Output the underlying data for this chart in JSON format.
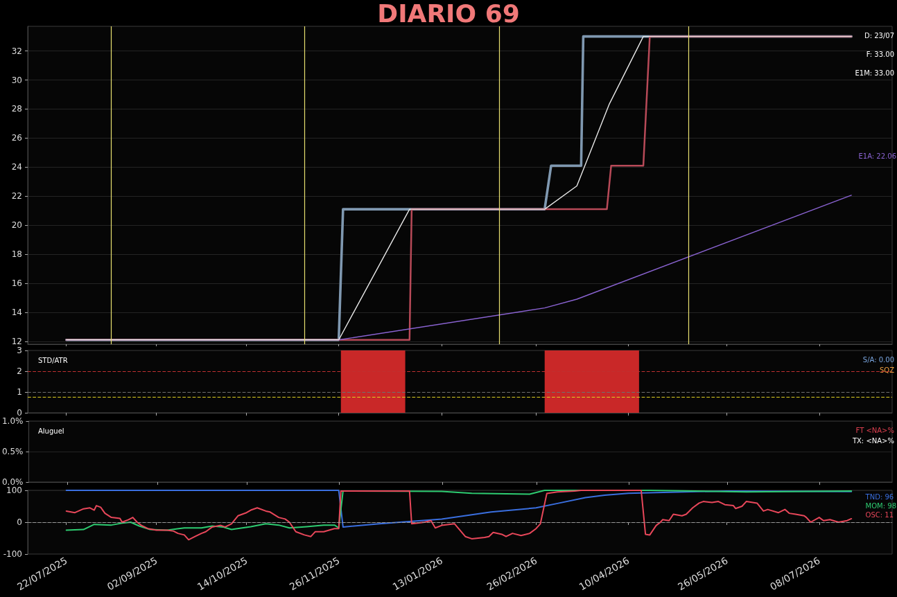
{
  "chart_data": [
    {
      "type": "line",
      "title": "DIARIO 69",
      "xlim": [
        "2025-07-04",
        "2026-08-11"
      ],
      "ylim": [
        11.8,
        33.7
      ],
      "yticks": [
        12,
        14,
        16,
        18,
        20,
        22,
        24,
        26,
        28,
        30,
        32
      ],
      "xticks": [
        {
          "value": "2025-07-22",
          "label": null
        },
        {
          "value": "2025-09-02",
          "label": null
        },
        {
          "value": "2025-10-14",
          "label": null
        },
        {
          "value": "2025-11-26",
          "label": null
        },
        {
          "value": "2026-01-13",
          "label": null
        },
        {
          "value": "2026-02-26",
          "label": null
        },
        {
          "value": "2026-04-10",
          "label": null
        },
        {
          "value": "2026-05-26",
          "label": null
        },
        {
          "value": "2026-07-08",
          "label": null
        }
      ],
      "tick_labels": "y",
      "grid": "y",
      "marker": "none",
      "legend": "right",
      "annotations": [
        "D: 23/07",
        "F: 33.00",
        "E1M: 33.00"
      ],
      "ref_lines": [
        {
          "axis": "x",
          "value": "2025-08-12",
          "color": "#e8e070"
        },
        {
          "axis": "x",
          "value": "2025-11-10",
          "color": "#e8e070"
        },
        {
          "axis": "x",
          "value": "2026-02-09",
          "color": "#e8e070"
        },
        {
          "axis": "x",
          "value": "2026-05-08",
          "color": "#e8e070"
        }
      ],
      "series": [
        {
          "color": "#7f98b0",
          "type": "line",
          "x": [
            "2025-07-22",
            "2025-11-26",
            "2025-11-28",
            "2026-03-02",
            "2026-03-05",
            "2026-03-19",
            "2026-03-20",
            "2026-07-23"
          ],
          "values": [
            12.1,
            12.1,
            21.1,
            21.1,
            24.1,
            24.1,
            33,
            33
          ]
        },
        {
          "color": "#b84a58",
          "type": "line",
          "x": [
            "2025-07-22",
            "2025-12-29",
            "2025-12-30",
            "2026-03-31",
            "2026-04-02",
            "2026-04-17",
            "2026-04-20",
            "2026-07-23"
          ],
          "values": [
            12.1,
            12.1,
            21.1,
            21.1,
            24.1,
            24.1,
            33,
            33
          ]
        },
        {
          "color": "#8a63d2",
          "name": "E1A: 22.06",
          "x": [
            "2025-07-22",
            "2025-11-26",
            "2026-03-02",
            "2026-03-17",
            "2026-07-23"
          ],
          "values": [
            12.1,
            12.1,
            14.3,
            14.9,
            22.06
          ]
        },
        {
          "color": "#e8e8e8",
          "x": [
            "2025-07-22",
            "2025-11-26",
            "2025-12-29",
            "2026-03-02",
            "2026-03-17",
            "2026-04-01",
            "2026-04-17",
            "2026-07-23"
          ],
          "values": [
            12.1,
            12.1,
            21.1,
            21.1,
            22.7,
            28.3,
            33,
            33
          ]
        }
      ]
    },
    {
      "type": "line",
      "title": "STD/ATR",
      "xlim": [
        "2025-07-04",
        "2026-08-11"
      ],
      "ylim": [
        0,
        3
      ],
      "yticks": [
        0,
        1,
        2,
        3
      ],
      "xticks": [
        {
          "value": "2025-07-22",
          "label": null
        },
        {
          "value": "2025-09-02",
          "label": null
        },
        {
          "value": "2025-10-14",
          "label": null
        },
        {
          "value": "2025-11-26",
          "label": null
        },
        {
          "value": "2026-01-13",
          "label": null
        },
        {
          "value": "2026-02-26",
          "label": null
        },
        {
          "value": "2026-04-10",
          "label": null
        },
        {
          "value": "2026-05-26",
          "label": null
        },
        {
          "value": "2026-07-08",
          "label": null
        }
      ],
      "tick_labels": "y",
      "annotations": [
        "S/A: 0.00",
        "SQZ"
      ],
      "bands": [
        {
          "axis": "x",
          "from": "2025-11-27",
          "to": "2025-12-27",
          "color": "#d42a2a"
        },
        {
          "axis": "x",
          "from": "2026-03-02",
          "to": "2026-04-15",
          "color": "#d42a2a"
        }
      ],
      "ref_lines": [
        {
          "axis": "y",
          "value": 2,
          "color": "#c03030",
          "line_style": "dashed"
        },
        {
          "axis": "y",
          "value": 1,
          "color": "#707070",
          "line_style": "dashed"
        },
        {
          "axis": "y",
          "value": 0.75,
          "color": "#e0d020",
          "line_style": "dashed"
        }
      ]
    },
    {
      "type": "line",
      "title": "Aluguel",
      "xlim": [
        "2025-07-04",
        "2026-08-11"
      ],
      "ylim": [
        0,
        1
      ],
      "yticks": [
        {
          "value": 0,
          "label": "0.0%"
        },
        {
          "value": 0.5,
          "label": "0.5%"
        },
        {
          "value": 1,
          "label": "1.0%"
        }
      ],
      "xticks": [
        {
          "value": "2025-07-22",
          "label": null
        },
        {
          "value": "2025-09-02",
          "label": null
        },
        {
          "value": "2025-10-14",
          "label": null
        },
        {
          "value": "2025-11-26",
          "label": null
        },
        {
          "value": "2026-01-13",
          "label": null
        },
        {
          "value": "2026-02-26",
          "label": null
        },
        {
          "value": "2026-04-10",
          "label": null
        },
        {
          "value": "2026-05-26",
          "label": null
        },
        {
          "value": "2026-07-08",
          "label": null
        }
      ],
      "tick_labels": "y",
      "grid": "y",
      "annotations": [
        "FT <NA>%",
        "TX: <NA>%"
      ]
    },
    {
      "type": "line",
      "xlim": [
        "2025-07-04",
        "2026-08-11"
      ],
      "ylim": [
        -100,
        100
      ],
      "yticks": [
        -100,
        0,
        100
      ],
      "xticks": [
        {
          "value": "2025-07-22",
          "label": "22/07/2025"
        },
        {
          "value": "2025-09-02",
          "label": "02/09/2025"
        },
        {
          "value": "2025-10-14",
          "label": "14/10/2025"
        },
        {
          "value": "2025-11-26",
          "label": "26/11/2025"
        },
        {
          "value": "2026-01-13",
          "label": "13/01/2026"
        },
        {
          "value": "2026-02-26",
          "label": "26/02/2026"
        },
        {
          "value": "2026-04-10",
          "label": "10/04/2026"
        },
        {
          "value": "2026-05-26",
          "label": "26/05/2026"
        },
        {
          "value": "2026-07-08",
          "label": "08/07/2026"
        }
      ],
      "marker": "none",
      "legend": "top right",
      "ref_lines": [
        {
          "axis": "y",
          "value": 0,
          "color": "#999999",
          "line_style": "dashed"
        }
      ],
      "series": [
        {
          "name": "TND: 96",
          "color": "#3a6fe0",
          "x": [
            "2025-07-22",
            "2025-11-26",
            "2025-11-28",
            "2025-12-15",
            "2026-01-13",
            "2026-02-05",
            "2026-02-26",
            "2026-03-08",
            "2026-03-21",
            "2026-03-30",
            "2026-04-10",
            "2026-05-26",
            "2026-07-23"
          ],
          "values": [
            100,
            100,
            -15,
            -5,
            10,
            32,
            45,
            59,
            77,
            85,
            91,
            98,
            96
          ]
        },
        {
          "name": "MOM: 98",
          "color": "#2ecc71",
          "x": [
            "2025-07-22",
            "2025-07-30",
            "2025-08-04",
            "2025-08-12",
            "2025-08-17",
            "2025-08-21",
            "2025-08-25",
            "2025-08-30",
            "2025-09-07",
            "2025-09-15",
            "2025-09-23",
            "2025-09-28",
            "2025-10-03",
            "2025-10-07",
            "2025-10-16",
            "2025-10-23",
            "2025-10-29",
            "2025-11-03",
            "2025-11-11",
            "2025-11-19",
            "2025-11-24",
            "2025-11-26",
            "2025-11-28",
            "2026-01-13",
            "2026-01-27",
            "2026-02-23",
            "2026-03-02",
            "2026-04-20",
            "2026-06-04",
            "2026-07-23"
          ],
          "values": [
            -25,
            -23,
            -7,
            -9,
            -3,
            0,
            -12,
            -23,
            -25,
            -18,
            -18,
            -12,
            -15,
            -23,
            -14,
            -5,
            -9,
            -18,
            -14,
            -9,
            -9,
            -18,
            98,
            97,
            91,
            88,
            100,
            100,
            95,
            98
          ]
        },
        {
          "name": "OSC: 11",
          "color": "#e8475a",
          "x": [
            "2025-07-22",
            "2025-07-26",
            "2025-07-30",
            "2025-08-02",
            "2025-08-04",
            "2025-08-05",
            "2025-08-07",
            "2025-08-09",
            "2025-08-12",
            "2025-08-16",
            "2025-08-17",
            "2025-08-20",
            "2025-08-22",
            "2025-08-24",
            "2025-08-26",
            "2025-08-29",
            "2025-09-02",
            "2025-09-07",
            "2025-09-10",
            "2025-09-12",
            "2025-09-15",
            "2025-09-17",
            "2025-09-20",
            "2025-09-23",
            "2025-09-25",
            "2025-09-28",
            "2025-10-02",
            "2025-10-04",
            "2025-10-07",
            "2025-10-10",
            "2025-10-14",
            "2025-10-16",
            "2025-10-19",
            "2025-10-23",
            "2025-10-25",
            "2025-10-29",
            "2025-11-01",
            "2025-11-03",
            "2025-11-06",
            "2025-11-10",
            "2025-11-13",
            "2025-11-15",
            "2025-11-19",
            "2025-11-24",
            "2025-11-26",
            "2025-11-27",
            "2025-12-29",
            "2025-12-30",
            "2026-01-05",
            "2026-01-08",
            "2026-01-10",
            "2026-01-13",
            "2026-01-19",
            "2026-01-24",
            "2026-01-27",
            "2026-02-02",
            "2026-02-04",
            "2026-02-06",
            "2026-02-10",
            "2026-02-12",
            "2026-02-15",
            "2026-02-19",
            "2026-02-23",
            "2026-02-26",
            "2026-02-28",
            "2026-03-03",
            "2026-03-08",
            "2026-03-16",
            "2026-03-19",
            "2026-04-16",
            "2026-04-18",
            "2026-04-20",
            "2026-04-23",
            "2026-04-25",
            "2026-04-26",
            "2026-04-29",
            "2026-05-01",
            "2026-05-05",
            "2026-05-07",
            "2026-05-10",
            "2026-05-13",
            "2026-05-15",
            "2026-05-19",
            "2026-05-22",
            "2026-05-25",
            "2026-05-29",
            "2026-05-30",
            "2026-06-02",
            "2026-06-04",
            "2026-06-09",
            "2026-06-12",
            "2026-06-14",
            "2026-06-19",
            "2026-06-22",
            "2026-06-24",
            "2026-06-27",
            "2026-07-01",
            "2026-07-02",
            "2026-07-04",
            "2026-07-08",
            "2026-07-10",
            "2026-07-13",
            "2026-07-17",
            "2026-07-21",
            "2026-07-23"
          ],
          "values": [
            35,
            30,
            42,
            45,
            38,
            52,
            47,
            28,
            15,
            12,
            0,
            8,
            15,
            0,
            -10,
            -20,
            -25,
            -25,
            -28,
            -35,
            -40,
            -55,
            -45,
            -35,
            -30,
            -15,
            -10,
            -15,
            -5,
            20,
            30,
            38,
            45,
            35,
            32,
            15,
            10,
            0,
            -30,
            -40,
            -45,
            -30,
            -30,
            -20,
            -20,
            98,
            98,
            -5,
            0,
            5,
            -18,
            -10,
            -5,
            -45,
            -52,
            -48,
            -45,
            -32,
            -38,
            -45,
            -35,
            -42,
            -35,
            -20,
            -5,
            90,
            95,
            98,
            100,
            100,
            -38,
            -40,
            -10,
            0,
            8,
            5,
            25,
            20,
            25,
            45,
            60,
            65,
            62,
            65,
            55,
            52,
            43,
            50,
            65,
            60,
            35,
            40,
            30,
            40,
            28,
            25,
            20,
            15,
            0,
            15,
            5,
            8,
            0,
            5,
            11
          ]
        }
      ]
    }
  ]
}
